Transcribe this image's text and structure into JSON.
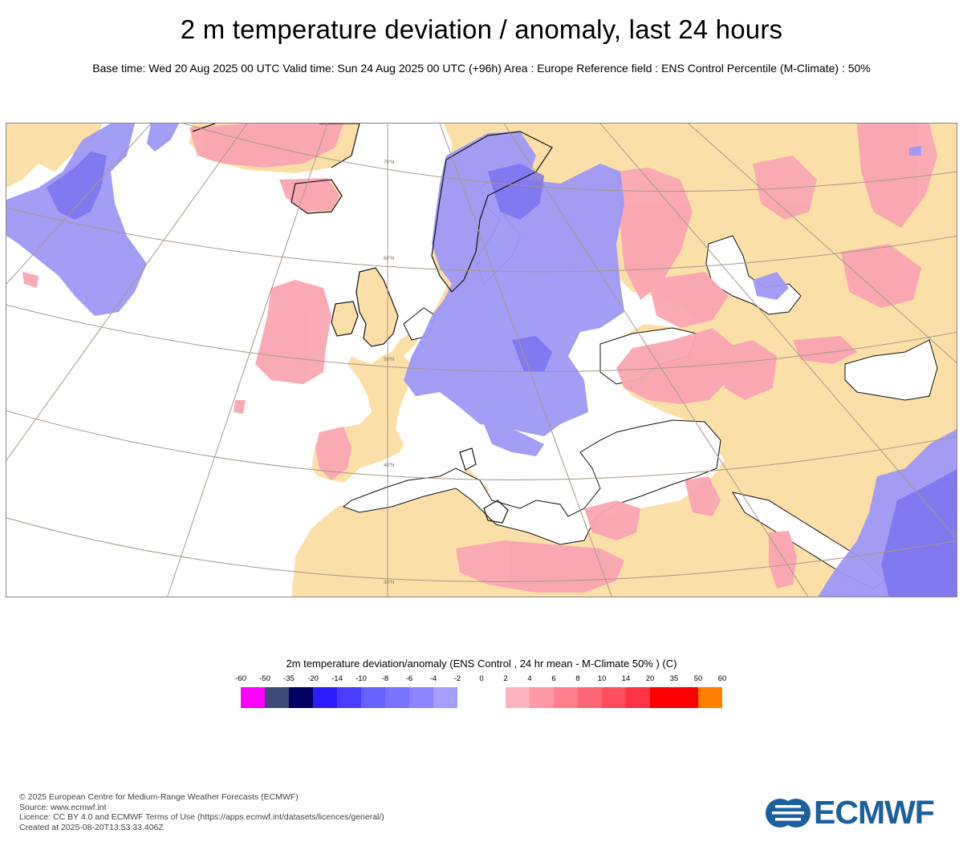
{
  "title": "2 m temperature deviation / anomaly, last 24 hours",
  "subtitle": "Base time: Wed 20 Aug 2025 00 UTC Valid time: Sun 24 Aug 2025 00 UTC (+96h) Area : Europe Reference field : ENS Control Percentile (M-Climate) : 50%",
  "map": {
    "region": "Europe",
    "latitude_labels": [
      "70°N",
      "60°N",
      "50°N",
      "40°N",
      "30°N"
    ],
    "colors": {
      "land": "#fbdfa8",
      "sea": "#ffffff",
      "warm_anomaly": "#f9a6b2",
      "cold_anomaly": "#9e98f5",
      "cold_strong": "#7b73ef",
      "graticule": "#a89888",
      "coast": "#111111"
    }
  },
  "legend": {
    "title": "2m temperature deviation/anomaly (ENS Control , 24 hr mean - M-Climate 50% ) (C)",
    "ticks": [
      "-60",
      "-50",
      "-35",
      "-20",
      "-14",
      "-10",
      "-8",
      "-6",
      "-4",
      "-2",
      "0",
      "2",
      "4",
      "6",
      "8",
      "10",
      "14",
      "20",
      "35",
      "50",
      "60"
    ],
    "colors": [
      "#ff00ff",
      "#3c4a78",
      "#000060",
      "#2a1cff",
      "#4a3cff",
      "#6660ff",
      "#7a73ff",
      "#8c85ff",
      "#a39eff",
      "#ffffff",
      "#ffffff",
      "#ffb3bd",
      "#ff97a4",
      "#ff7f8c",
      "#ff6675",
      "#ff4d5d",
      "#ff3347",
      "#ff0000",
      "#ff0000",
      "#ff8000"
    ]
  },
  "footer": {
    "line1": "© 2025 European Centre for Medium-Range Weather Forecasts (ECMWF)",
    "line2": "Source: www.ecmwf.int",
    "line3": "Licence: CC BY 4.0 and ECMWF Terms of Use (https://apps.ecmwf.int/datasets/licences/general/)",
    "line4": "Created at 2025-08-20T13:53:33.406Z"
  },
  "logo": {
    "text": "ECMWF",
    "color": "#1b5f9e"
  }
}
